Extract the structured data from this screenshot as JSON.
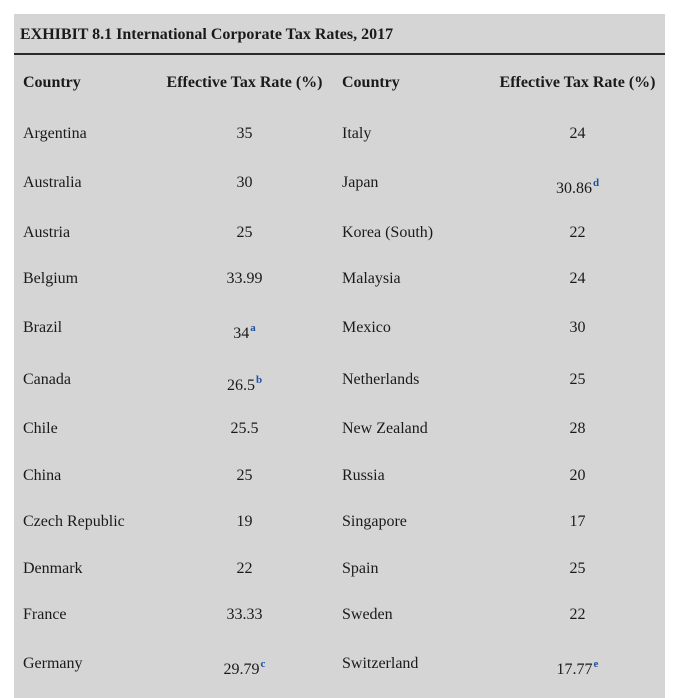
{
  "title": "EXHIBIT 8.1 International Corporate Tax Rates, 2017",
  "headers": {
    "country_left": "Country",
    "rate_left": "Effective Tax Rate (%)",
    "country_right": "Country",
    "rate_right": "Effective Tax Rate (%)"
  },
  "rows": [
    {
      "left_country": "Argentina",
      "left_rate": "35",
      "left_fn": "",
      "right_country": "Italy",
      "right_rate": "24",
      "right_fn": ""
    },
    {
      "left_country": "Australia",
      "left_rate": "30",
      "left_fn": "",
      "right_country": "Japan",
      "right_rate": "30.86",
      "right_fn": "d"
    },
    {
      "left_country": "Austria",
      "left_rate": "25",
      "left_fn": "",
      "right_country": "Korea (South)",
      "right_rate": "22",
      "right_fn": ""
    },
    {
      "left_country": "Belgium",
      "left_rate": "33.99",
      "left_fn": "",
      "right_country": "Malaysia",
      "right_rate": "24",
      "right_fn": ""
    },
    {
      "left_country": "Brazil",
      "left_rate": "34",
      "left_fn": "a",
      "right_country": "Mexico",
      "right_rate": "30",
      "right_fn": ""
    },
    {
      "left_country": "Canada",
      "left_rate": "26.5",
      "left_fn": "b",
      "right_country": "Netherlands",
      "right_rate": "25",
      "right_fn": ""
    },
    {
      "left_country": "Chile",
      "left_rate": "25.5",
      "left_fn": "",
      "right_country": "New Zealand",
      "right_rate": "28",
      "right_fn": ""
    },
    {
      "left_country": "China",
      "left_rate": "25",
      "left_fn": "",
      "right_country": "Russia",
      "right_rate": "20",
      "right_fn": ""
    },
    {
      "left_country": "Czech Republic",
      "left_rate": "19",
      "left_fn": "",
      "right_country": "Singapore",
      "right_rate": "17",
      "right_fn": ""
    },
    {
      "left_country": "Denmark",
      "left_rate": "22",
      "left_fn": "",
      "right_country": "Spain",
      "right_rate": "25",
      "right_fn": ""
    },
    {
      "left_country": "France",
      "left_rate": "33.33",
      "left_fn": "",
      "right_country": "Sweden",
      "right_rate": "22",
      "right_fn": ""
    },
    {
      "left_country": "Germany",
      "left_rate": "29.79",
      "left_fn": "c",
      "right_country": "Switzerland",
      "right_rate": "17.77",
      "right_fn": "e"
    }
  ],
  "colors": {
    "background": "#d5d5d5",
    "footnote": "#1f4fa0"
  }
}
